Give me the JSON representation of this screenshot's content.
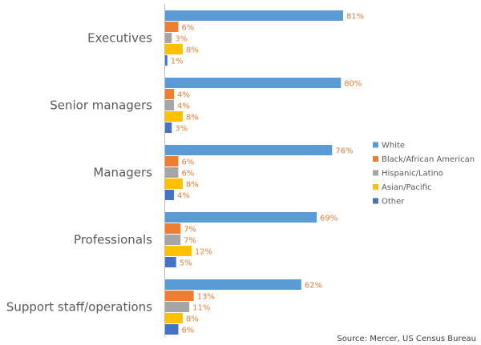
{
  "chart_data": {
    "type": "bar",
    "orientation": "horizontal",
    "categories": [
      "Executives",
      "Senior managers",
      "Managers",
      "Professionals",
      "Support staff/operations"
    ],
    "series": [
      {
        "name": "White",
        "color": "#5b9bd5",
        "values": [
          81,
          80,
          76,
          69,
          62
        ],
        "value_labels": [
          "81%",
          "80%",
          "76%",
          "69%",
          "62%"
        ]
      },
      {
        "name": "Black/African American",
        "color": "#ed7d31",
        "values": [
          6,
          4,
          6,
          7,
          13
        ],
        "value_labels": [
          "6%",
          "4%",
          "6%",
          "7%",
          "13%"
        ]
      },
      {
        "name": "Hispanic/Latino",
        "color": "#a5a5a5",
        "values": [
          3,
          4,
          6,
          7,
          11
        ],
        "value_labels": [
          "3%",
          "4%",
          "6%",
          "7%",
          "11%"
        ]
      },
      {
        "name": "Asian/Pacific",
        "color": "#ffc000",
        "values": [
          8,
          8,
          8,
          12,
          8
        ],
        "value_labels": [
          "8%",
          "8%",
          "8%",
          "12%",
          "8%"
        ]
      },
      {
        "name": "Other",
        "color": "#4472c4",
        "values": [
          1,
          3,
          4,
          5,
          6
        ],
        "value_labels": [
          "1%",
          "3%",
          "4%",
          "5%",
          "6%"
        ]
      }
    ],
    "source": "Source: Mercer, US Census Bureau",
    "legend": "right"
  }
}
